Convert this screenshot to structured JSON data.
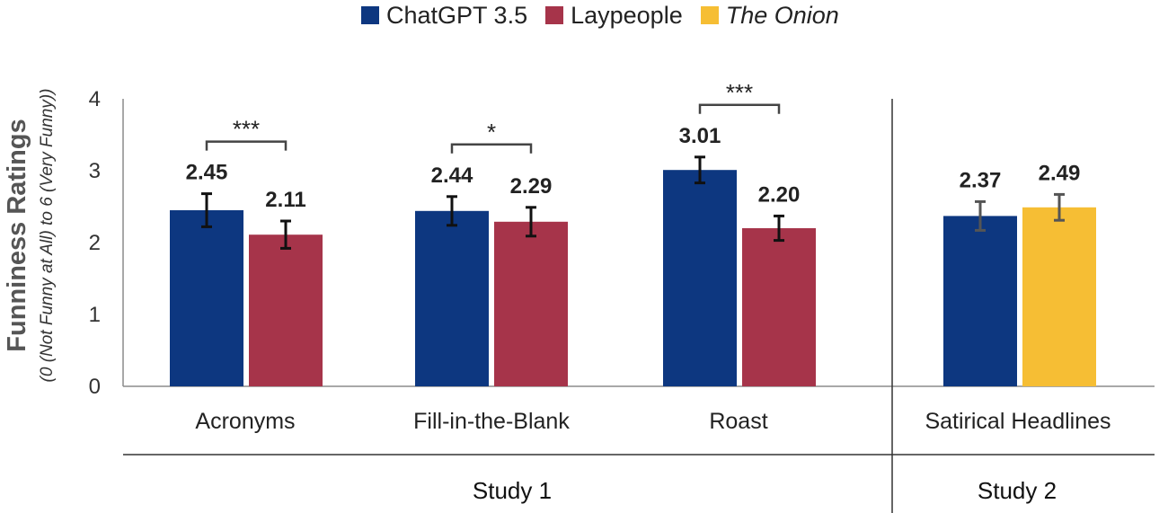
{
  "legend": [
    {
      "label": "ChatGPT 3.5",
      "color": "#0d3780",
      "italic": false
    },
    {
      "label": "Laypeople",
      "color": "#a6344a",
      "italic": false
    },
    {
      "label": "The Onion",
      "color": "#f6be34",
      "italic": true
    }
  ],
  "chart_data": {
    "type": "bar",
    "ylabel": "Funniness Ratings",
    "ylabel_sub": "(0 (Not Funny at All) to 6 (Very Funny))",
    "ylim": [
      0,
      4
    ],
    "yticks": [
      "0",
      "1",
      "2",
      "3",
      "4"
    ],
    "grid": false,
    "groups": [
      {
        "category": "Acronyms",
        "study": "Study 1",
        "bars": [
          {
            "series": "ChatGPT 3.5",
            "value": 2.45,
            "label": "2.45",
            "err": 0.23
          },
          {
            "series": "Laypeople",
            "value": 2.11,
            "label": "2.11",
            "err": 0.19
          }
        ],
        "significance": "***"
      },
      {
        "category": "Fill-in-the-Blank",
        "study": "Study 1",
        "bars": [
          {
            "series": "ChatGPT 3.5",
            "value": 2.44,
            "label": "2.44",
            "err": 0.2
          },
          {
            "series": "Laypeople",
            "value": 2.29,
            "label": "2.29",
            "err": 0.2
          }
        ],
        "significance": "*"
      },
      {
        "category": "Roast",
        "study": "Study 1",
        "bars": [
          {
            "series": "ChatGPT 3.5",
            "value": 3.01,
            "label": "3.01",
            "err": 0.18
          },
          {
            "series": "Laypeople",
            "value": 2.2,
            "label": "2.20",
            "err": 0.17
          }
        ],
        "significance": "***"
      },
      {
        "category": "Satirical Headlines",
        "study": "Study 2",
        "bars": [
          {
            "series": "ChatGPT 3.5",
            "value": 2.37,
            "label": "2.37",
            "err": 0.2
          },
          {
            "series": "The Onion",
            "value": 2.49,
            "label": "2.49",
            "err": 0.18
          }
        ],
        "significance": ""
      }
    ],
    "studies": [
      "Study 1",
      "Study 2"
    ]
  }
}
